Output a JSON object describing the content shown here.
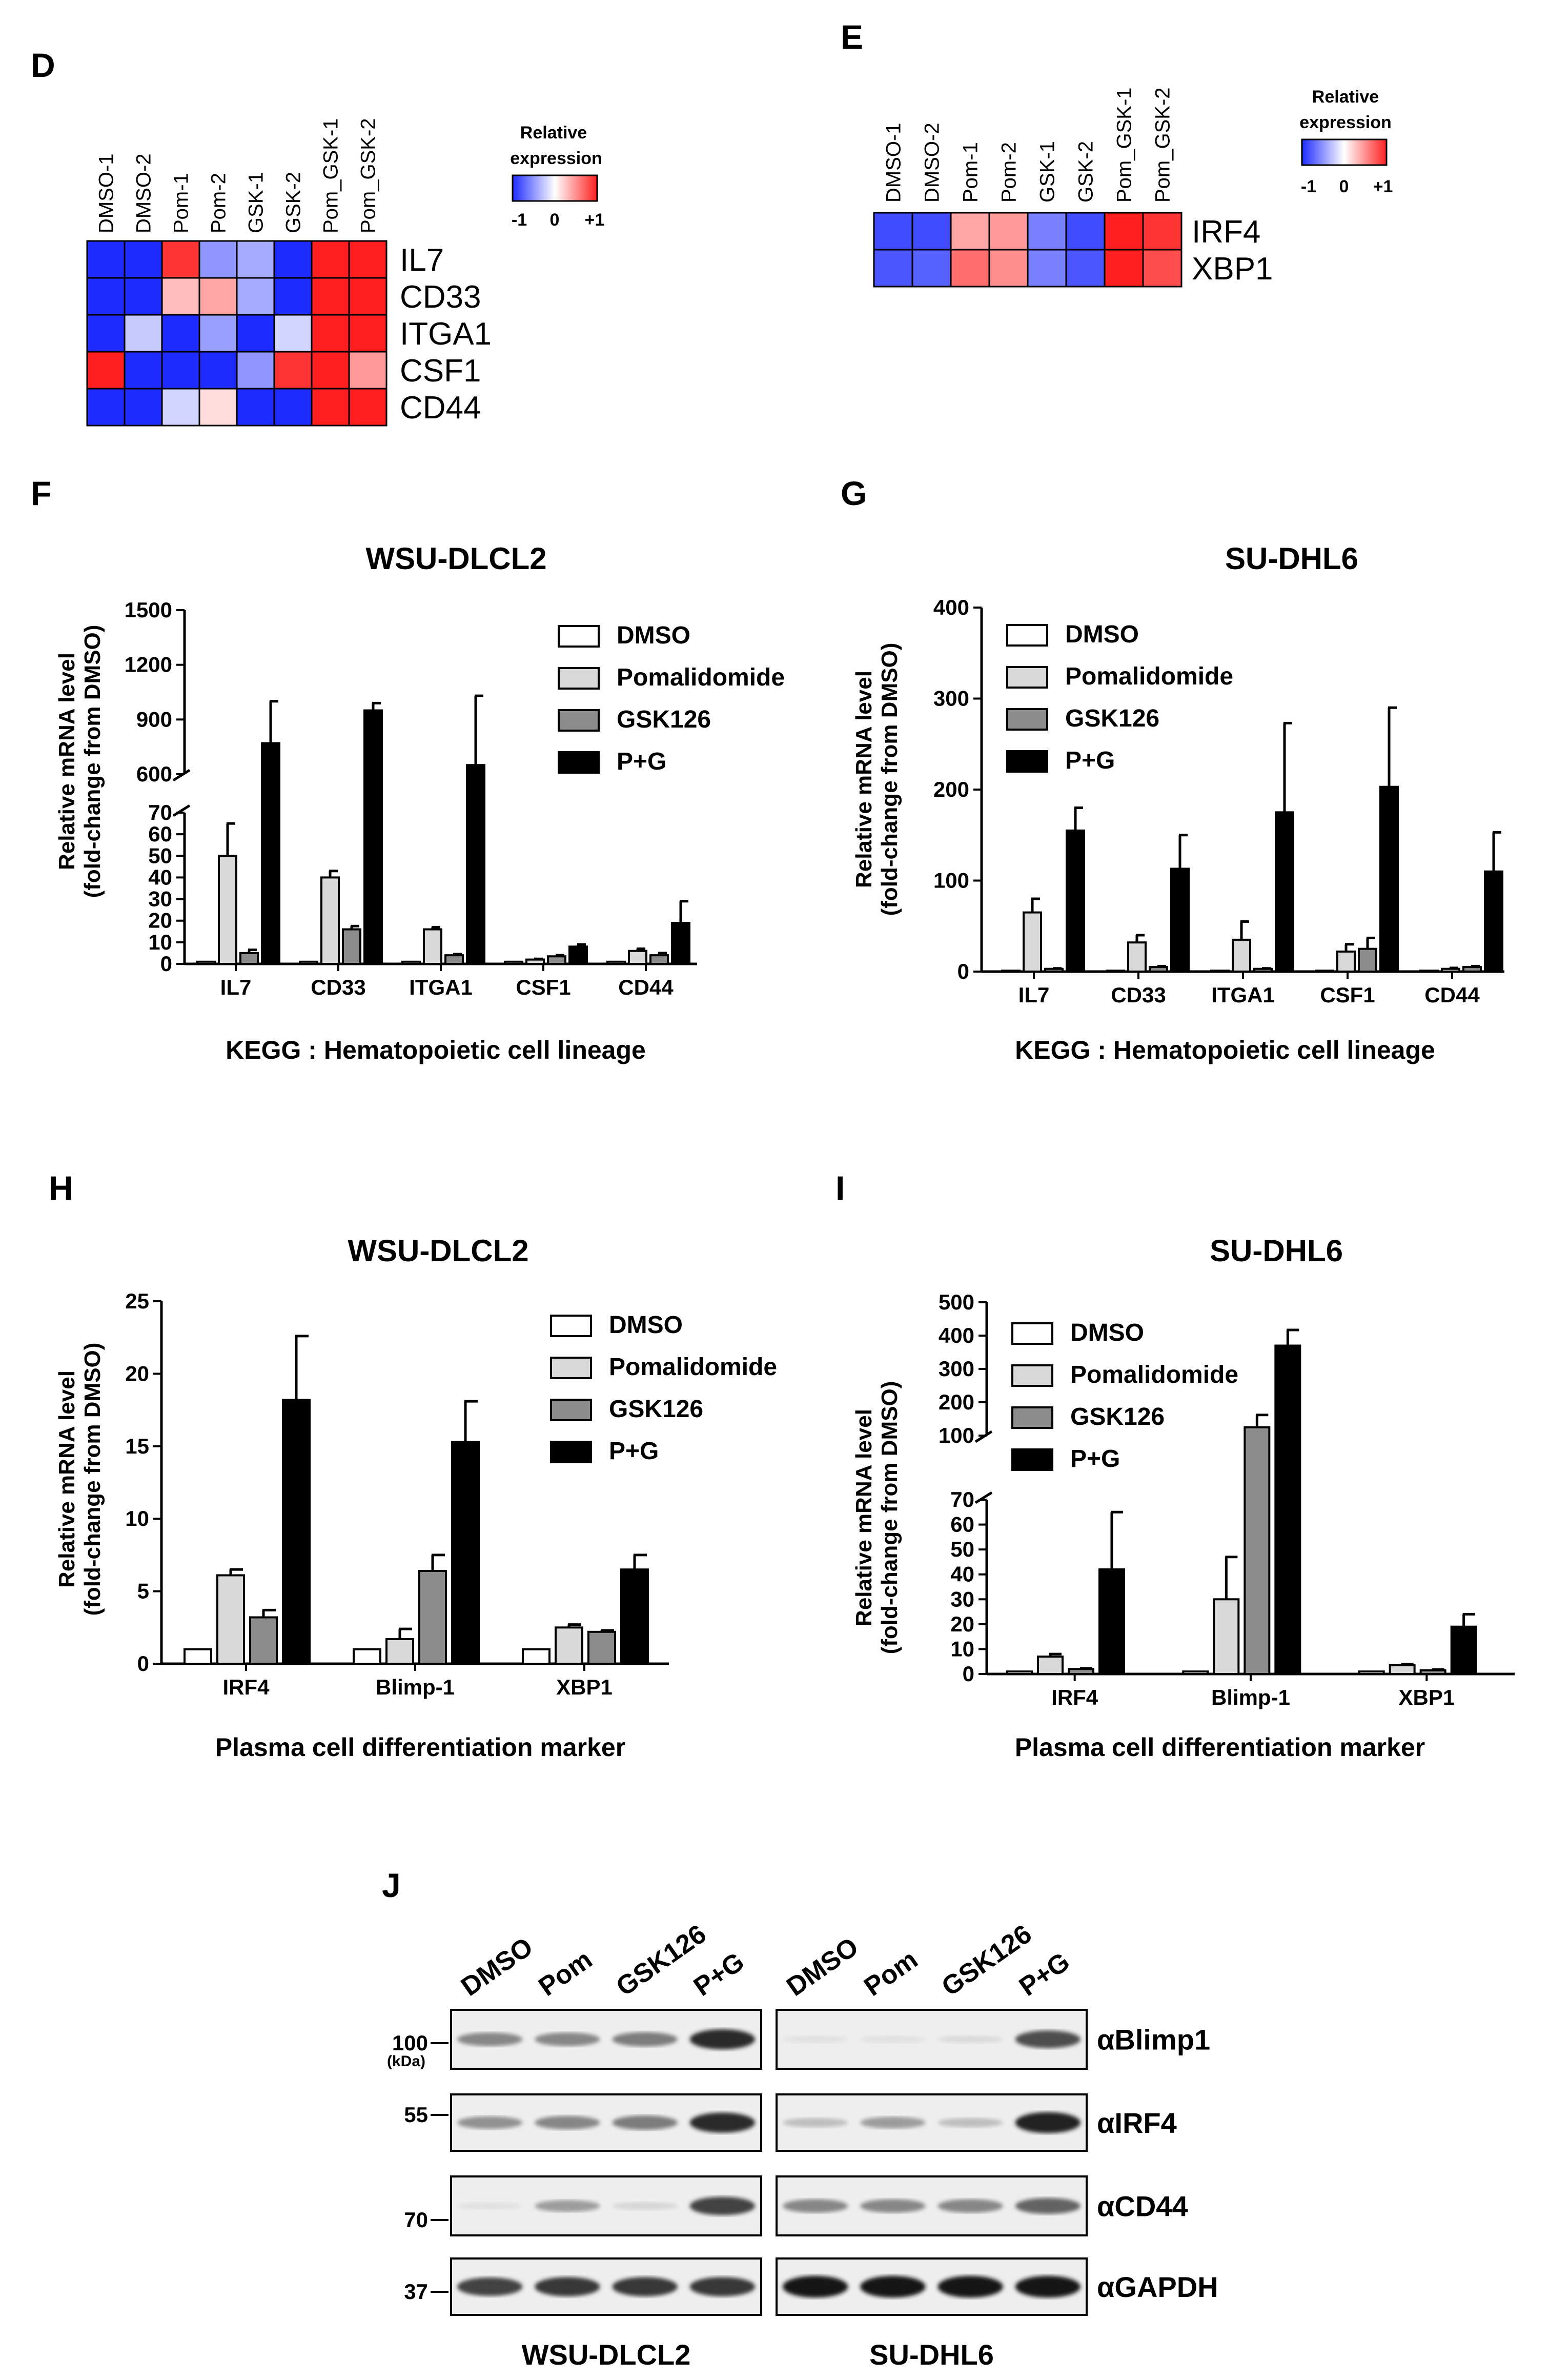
{
  "colors": {
    "dmso": "#ffffff",
    "pom": "#d9d9d9",
    "gsk": "#8c8c8c",
    "pg": "#000000",
    "hm_low": "#1f2cff",
    "hm_mid": "#ffffff",
    "hm_high": "#ff1f1f"
  },
  "legend_labels": [
    "DMSO",
    "Pomalidomide",
    "GSK126",
    "P+G"
  ],
  "panels": {
    "D": {
      "label": "D"
    },
    "E": {
      "label": "E"
    },
    "F": {
      "label": "F",
      "title": "WSU-DLCL2",
      "ylabel_line1": "Relative mRNA level",
      "ylabel_line2": "(fold-change from DMSO)",
      "xlabel": "KEGG : Hematopoietic cell lineage"
    },
    "G": {
      "label": "G",
      "title": "SU-DHL6",
      "ylabel_line1": "Relative mRNA level",
      "ylabel_line2": "(fold-change from DMSO)",
      "xlabel": "KEGG : Hematopoietic cell lineage"
    },
    "H": {
      "label": "H",
      "title": "WSU-DLCL2",
      "ylabel_line1": "Relative mRNA level",
      "ylabel_line2": "(fold-change from DMSO)",
      "xlabel": "Plasma cell differentiation marker"
    },
    "I": {
      "label": "I",
      "title": "SU-DHL6",
      "ylabel_line1": "Relative mRNA level",
      "ylabel_line2": "(fold-change from DMSO)",
      "xlabel": "Plasma cell differentiation marker"
    },
    "J": {
      "label": "J"
    }
  },
  "colorbar": {
    "title_line1": "Relative",
    "title_line2": "expression",
    "ticks": [
      "-1",
      "0",
      "+1"
    ]
  },
  "western": {
    "lanes": [
      "DMSO",
      "Pom",
      "GSK126",
      "P+G"
    ],
    "cell_lines": [
      "WSU-DLCL2",
      "SU-DHL6"
    ],
    "antibodies": [
      "αBlimp1",
      "αIRF4",
      "αCD44",
      "αGAPDH"
    ],
    "markers": [
      "100",
      "55",
      "70",
      "37"
    ],
    "kda_unit": "(kDa)",
    "intensity_wsu": [
      [
        0.45,
        0.45,
        0.5,
        0.85
      ],
      [
        0.4,
        0.45,
        0.5,
        0.85
      ],
      [
        0.05,
        0.35,
        0.1,
        0.75
      ],
      [
        0.75,
        0.8,
        0.8,
        0.8
      ]
    ],
    "intensity_su": [
      [
        0.05,
        0.05,
        0.08,
        0.7
      ],
      [
        0.2,
        0.35,
        0.2,
        0.9
      ],
      [
        0.45,
        0.45,
        0.45,
        0.6
      ],
      [
        0.95,
        0.95,
        0.95,
        0.95
      ]
    ]
  },
  "chart_data": [
    {
      "type": "heatmap",
      "panel": "D",
      "columns": [
        "DMSO-1",
        "DMSO-2",
        "Pom-1",
        "Pom-2",
        "GSK-1",
        "GSK-2",
        "Pom_GSK-1",
        "Pom_GSK-2"
      ],
      "rows": [
        "IL7",
        "CD33",
        "ITGA1",
        "CSF1",
        "CD44"
      ],
      "values": [
        [
          -1,
          -1,
          0.9,
          -0.5,
          -0.4,
          -1,
          1,
          1
        ],
        [
          -1,
          -1,
          0.3,
          0.4,
          -0.4,
          -1,
          1,
          1
        ],
        [
          -1,
          -0.25,
          -1,
          -0.45,
          -1,
          -0.2,
          1,
          1
        ],
        [
          1,
          -1,
          -1,
          -1,
          -0.5,
          0.9,
          1,
          0.45
        ],
        [
          -1,
          -1,
          -0.2,
          0.15,
          -1,
          -1,
          1,
          1
        ]
      ],
      "scale": [
        -1,
        1
      ]
    },
    {
      "type": "heatmap",
      "panel": "E",
      "columns": [
        "DMSO-1",
        "DMSO-2",
        "Pom-1",
        "Pom-2",
        "GSK-1",
        "GSK-2",
        "Pom_GSK-1",
        "Pom_GSK-2"
      ],
      "rows": [
        "IRF4",
        "XBP1"
      ],
      "values": [
        [
          -0.85,
          -0.85,
          0.4,
          0.45,
          -0.6,
          -0.85,
          1,
          0.9
        ],
        [
          -0.8,
          -0.75,
          0.65,
          0.5,
          -0.6,
          -0.8,
          1,
          0.8
        ]
      ],
      "scale": [
        -1,
        1
      ]
    },
    {
      "type": "bar",
      "panel": "F",
      "title": "WSU-DLCL2",
      "categories": [
        "IL7",
        "CD33",
        "ITGA1",
        "CSF1",
        "CD44"
      ],
      "series": [
        {
          "name": "DMSO",
          "values": [
            1,
            1,
            1,
            1,
            1
          ],
          "errors": [
            0,
            0,
            0,
            0,
            0
          ]
        },
        {
          "name": "Pomalidomide",
          "values": [
            50,
            40,
            16,
            2,
            6
          ],
          "errors": [
            15,
            3,
            1,
            0.3,
            1
          ]
        },
        {
          "name": "GSK126",
          "values": [
            5,
            16,
            4,
            3.5,
            4
          ],
          "errors": [
            1.5,
            1.5,
            0.5,
            0.5,
            1
          ]
        },
        {
          "name": "P+G",
          "values": [
            770,
            950,
            650,
            8,
            19
          ],
          "errors": [
            230,
            40,
            380,
            1,
            10
          ]
        }
      ],
      "broken_axis": true,
      "ylim": [
        0,
        1500
      ],
      "lower_ticks": [
        0,
        10,
        20,
        30,
        40,
        50,
        60,
        70
      ],
      "upper_ticks": [
        600,
        900,
        1200,
        1500
      ],
      "ylabel": "Relative mRNA level (fold-change from DMSO)",
      "xlabel": "KEGG : Hematopoietic cell lineage"
    },
    {
      "type": "bar",
      "panel": "G",
      "title": "SU-DHL6",
      "categories": [
        "IL7",
        "CD33",
        "ITGA1",
        "CSF1",
        "CD44"
      ],
      "series": [
        {
          "name": "DMSO",
          "values": [
            1,
            1,
            1,
            1,
            1
          ],
          "errors": [
            0,
            0,
            0,
            0,
            0
          ]
        },
        {
          "name": "Pomalidomide",
          "values": [
            65,
            32,
            35,
            22,
            3
          ],
          "errors": [
            15,
            8,
            20,
            8,
            1
          ]
        },
        {
          "name": "GSK126",
          "values": [
            3,
            5,
            3,
            25,
            5
          ],
          "errors": [
            0.5,
            1,
            0.5,
            12,
            1
          ]
        },
        {
          "name": "P+G",
          "values": [
            155,
            113,
            175,
            203,
            110
          ],
          "errors": [
            25,
            37,
            98,
            87,
            43
          ]
        }
      ],
      "ylim": [
        0,
        400
      ],
      "ticks": [
        0,
        100,
        200,
        300,
        400
      ],
      "ylabel": "Relative mRNA level (fold-change from DMSO)",
      "xlabel": "KEGG : Hematopoietic cell lineage"
    },
    {
      "type": "bar",
      "panel": "H",
      "title": "WSU-DLCL2",
      "categories": [
        "IRF4",
        "Blimp-1",
        "XBP1"
      ],
      "series": [
        {
          "name": "DMSO",
          "values": [
            1,
            1,
            1
          ],
          "errors": [
            0,
            0,
            0
          ]
        },
        {
          "name": "Pomalidomide",
          "values": [
            6.1,
            1.7,
            2.5
          ],
          "errors": [
            0.4,
            0.7,
            0.2
          ]
        },
        {
          "name": "GSK126",
          "values": [
            3.2,
            6.4,
            2.2
          ],
          "errors": [
            0.5,
            1.1,
            0.1
          ]
        },
        {
          "name": "P+G",
          "values": [
            18.2,
            15.3,
            6.5
          ],
          "errors": [
            4.4,
            2.8,
            1.0
          ]
        }
      ],
      "ylim": [
        0,
        25
      ],
      "ticks": [
        0,
        5,
        10,
        15,
        20,
        25
      ],
      "ylabel": "Relative mRNA level (fold-change from DMSO)",
      "xlabel": "Plasma cell differentiation marker"
    },
    {
      "type": "bar",
      "panel": "I",
      "title": "SU-DHL6",
      "categories": [
        "IRF4",
        "Blimp-1",
        "XBP1"
      ],
      "series": [
        {
          "name": "DMSO",
          "values": [
            1,
            1,
            1
          ],
          "errors": [
            0,
            0,
            0
          ]
        },
        {
          "name": "Pomalidomide",
          "values": [
            7,
            30,
            3.5
          ],
          "errors": [
            1,
            17,
            0.5
          ]
        },
        {
          "name": "GSK126",
          "values": [
            2,
            125,
            1.5
          ],
          "errors": [
            0.3,
            37,
            0.3
          ]
        },
        {
          "name": "P+G",
          "values": [
            42,
            370,
            19
          ],
          "errors": [
            23,
            47,
            5
          ]
        }
      ],
      "broken_axis": true,
      "ylim": [
        0,
        500
      ],
      "lower_ticks": [
        0,
        10,
        20,
        30,
        40,
        50,
        60,
        70
      ],
      "upper_ticks": [
        100,
        200,
        300,
        400,
        500
      ],
      "ylabel": "Relative mRNA level (fold-change from DMSO)",
      "xlabel": "Plasma cell differentiation marker"
    }
  ]
}
